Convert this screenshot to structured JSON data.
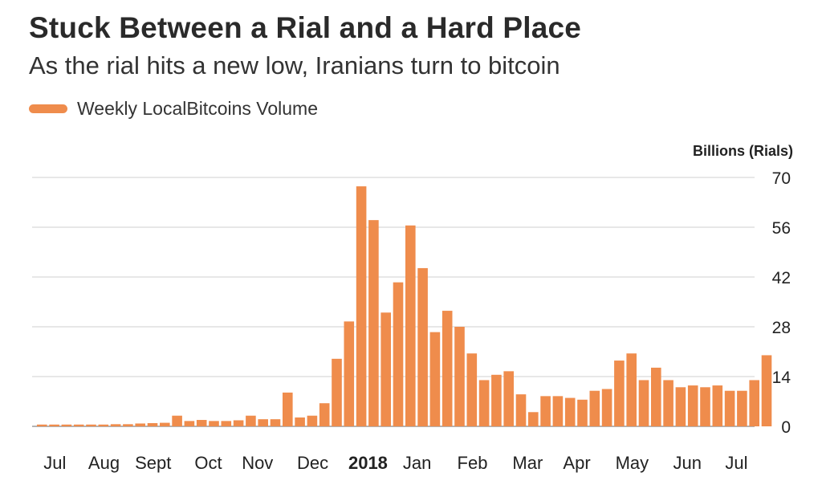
{
  "header": {
    "title": "Stuck Between a Rial and a Hard Place",
    "subtitle": "As the rial hits a new low, Iranians turn to bitcoin"
  },
  "legend": {
    "label": "Weekly LocalBitcoins Volume",
    "color": "#ef8c4c"
  },
  "colors": {
    "bar": "#ef8c4c",
    "grid": "#cfcfcf",
    "text": "#222222"
  },
  "chart_data": {
    "type": "bar",
    "series": [
      {
        "name": "Weekly LocalBitcoins Volume",
        "values": [
          0.5,
          0.5,
          0.5,
          0.5,
          0.5,
          0.5,
          0.6,
          0.6,
          0.8,
          0.9,
          1.0,
          3.0,
          1.5,
          1.8,
          1.5,
          1.5,
          1.7,
          3.0,
          2.0,
          2.0,
          9.5,
          2.5,
          3.0,
          6.5,
          19.0,
          29.5,
          67.5,
          58.0,
          32.0,
          40.5,
          56.5,
          44.5,
          26.5,
          32.5,
          28.0,
          20.5,
          13.0,
          14.5,
          15.5,
          9.0,
          4.0,
          8.5,
          8.5,
          8.0,
          7.5,
          10.0,
          10.5,
          18.5,
          20.5,
          13.0,
          16.5,
          13.0,
          11.0,
          11.5,
          11.0,
          11.5,
          10.0,
          10.0,
          13.0,
          20.0
        ]
      }
    ],
    "x_tick_labels": [
      "Jul",
      "Aug",
      "Sept",
      "Oct",
      "Nov",
      "Dec",
      "2018",
      "Jan",
      "Feb",
      "Mar",
      "Apr",
      "May",
      "Jun",
      "Jul"
    ],
    "x_tick_positions": [
      0,
      4,
      8,
      12.5,
      16.5,
      21,
      25.5,
      29.5,
      34,
      38.5,
      42.5,
      47,
      51.5,
      55.5
    ],
    "x_tick_bold": [
      "2018"
    ],
    "y_ticks": [
      0,
      14,
      28,
      42,
      56,
      70
    ],
    "y_tick_labels": [
      "0",
      "14",
      "28",
      "42",
      "56",
      "70"
    ],
    "ylim": [
      0,
      70
    ],
    "ylabel": "Billions (Rials)",
    "xlabel": "",
    "grid": true,
    "y_axis_side": "right"
  }
}
